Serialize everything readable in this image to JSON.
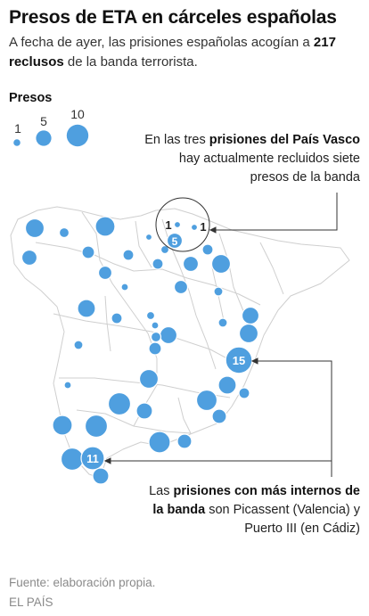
{
  "header": {
    "title": "Presos de ETA en cárceles españolas",
    "subtitle_pre": "A fecha de ayer, las prisiones españolas acogían a",
    "subtitle_bold": "217 reclusos",
    "subtitle_post": "de la banda terrorista."
  },
  "legend": {
    "title": "Presos",
    "items": [
      {
        "label": "1",
        "value": 1
      },
      {
        "label": "5",
        "value": 5
      },
      {
        "label": "10",
        "value": 10
      }
    ]
  },
  "annotations": {
    "pais_vasco": {
      "pre": "En las tres",
      "bold": "prisiones del País Vasco",
      "post": "hay actualmente recluidos siete presos de la banda"
    },
    "max": {
      "pre": "Las",
      "bold": "prisiones con más internos de la banda",
      "post": "son Picassent (Valencia) y Puerto III (en Cádiz)"
    }
  },
  "map_labels": {
    "vasco_left": "1",
    "vasco_right": "1",
    "vasco_center": "5",
    "picassent": "15",
    "puerto": "11"
  },
  "colors": {
    "bubble": "#4f9fdf",
    "bubble_stroke": "#ffffff",
    "borders": "#cfcfcf",
    "text": "#222222",
    "source": "#8a8a8a"
  },
  "footer": {
    "source": "Fuente: elaboración propia.",
    "publisher": "EL PAÍS"
  }
}
